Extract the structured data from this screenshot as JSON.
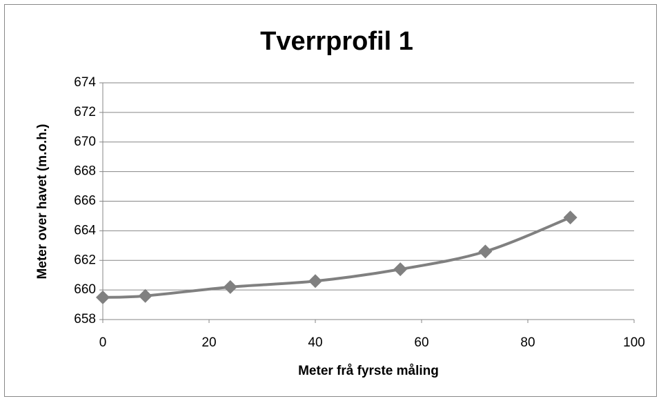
{
  "chart_data": {
    "type": "line",
    "title": "Tverrprofil 1",
    "x_label": "Meter frå fyrste måling",
    "y_label": "Meter over havet (m.o.h.)",
    "x": [
      0,
      8,
      24,
      40,
      56,
      72,
      88
    ],
    "values": [
      659.5,
      659.6,
      660.2,
      660.6,
      661.4,
      662.6,
      664.9
    ],
    "color": "#808080",
    "xlim": [
      0,
      100
    ],
    "xticks": [
      0,
      20,
      40,
      60,
      80,
      100
    ],
    "ylim": [
      658,
      674
    ],
    "yticks": [
      658,
      660,
      662,
      664,
      666,
      668,
      670,
      672,
      674
    ],
    "grid": true
  }
}
